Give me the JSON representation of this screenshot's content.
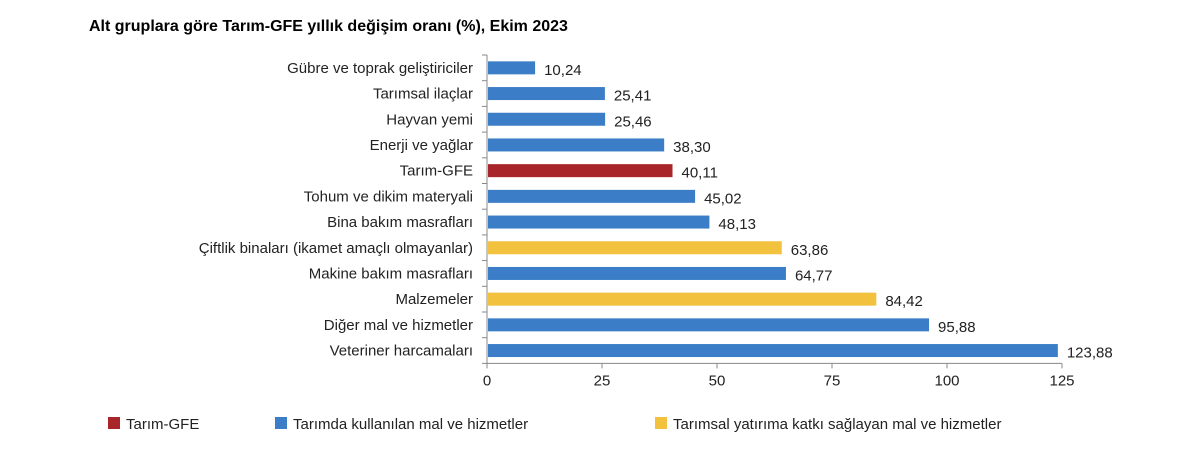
{
  "chart_data": {
    "type": "bar",
    "orientation": "horizontal",
    "title": "Alt gruplara göre Tarım-GFE yıllık değişim oranı (%), Ekim 2023",
    "categories": [
      "Gübre ve toprak geliştiriciler",
      "Tarımsal ilaçlar",
      "Hayvan yemi",
      "Enerji ve yağlar",
      "Tarım-GFE",
      "Tohum ve dikim materyali",
      "Bina bakım masrafları",
      "Çiftlik binaları (ikamet amaçlı olmayanlar)",
      "Makine bakım masrafları",
      "Malzemeler",
      "Diğer mal ve hizmetler",
      "Veteriner harcamaları"
    ],
    "values": [
      10.24,
      25.41,
      25.46,
      38.3,
      40.11,
      45.02,
      48.13,
      63.86,
      64.77,
      84.42,
      95.88,
      123.88
    ],
    "value_labels": [
      "10,24",
      "25,41",
      "25,46",
      "38,30",
      "40,11",
      "45,02",
      "48,13",
      "63,86",
      "64,77",
      "84,42",
      "95,88",
      "123,88"
    ],
    "groups": [
      1,
      1,
      1,
      1,
      0,
      1,
      1,
      2,
      1,
      2,
      1,
      1
    ],
    "xlim": [
      0,
      125
    ],
    "xticks": [
      0,
      25,
      50,
      75,
      100,
      125
    ],
    "grid": false,
    "legend_position": "bottom",
    "legend": [
      {
        "name": "Tarım-GFE",
        "color": "#a8262a"
      },
      {
        "name": "Tarımda kullanılan mal ve hizmetler",
        "color": "#3b7dc6"
      },
      {
        "name": "Tarımsal yatırıma katkı sağlayan mal ve hizmetler",
        "color": "#f2c23e"
      }
    ]
  }
}
